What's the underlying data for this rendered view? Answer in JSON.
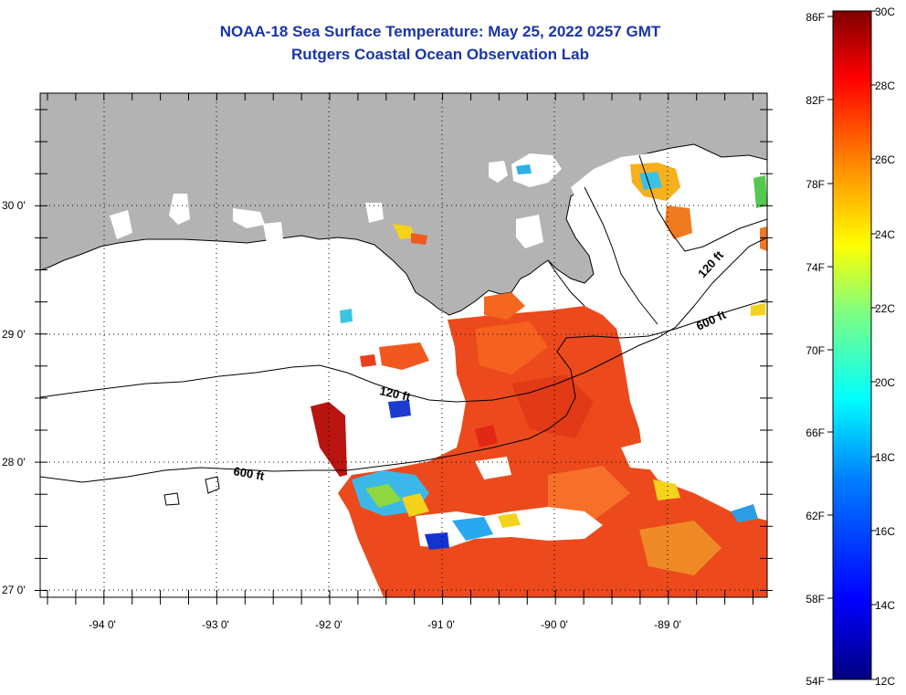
{
  "header": {
    "title": "NOAA-18 Sea Surface Temperature:  May 25, 2022 0257 GMT",
    "subtitle": "Rutgers Coastal Ocean Observation Lab"
  },
  "map": {
    "lon_labels": [
      "-94 0'",
      "-93 0'",
      "-92 0'",
      "-91 0'",
      "-90 0'",
      "-89 0'"
    ],
    "lat_labels": [
      "30 0'",
      "29 0'",
      "28 0'",
      "27 0'"
    ],
    "contour_labels": [
      "120 ft",
      "120 ft",
      "600 ft",
      "600 ft"
    ],
    "colors": {
      "land": "#b3b3b3",
      "ocean_cloud": "#ffffff",
      "sst_dominant": "#f0481c"
    }
  },
  "colorbar": {
    "f_labels": [
      "86F",
      "82F",
      "78F",
      "74F",
      "70F",
      "66F",
      "62F",
      "58F",
      "54F"
    ],
    "c_labels": [
      "30C",
      "28C",
      "26C",
      "24C",
      "22C",
      "20C",
      "18C",
      "16C",
      "14C",
      "12C"
    ],
    "stops": [
      "#00007f",
      "#0000ff",
      "#007fff",
      "#00ffff",
      "#7fff7f",
      "#ffff00",
      "#ff7f00",
      "#ff0000",
      "#7f0000"
    ]
  }
}
